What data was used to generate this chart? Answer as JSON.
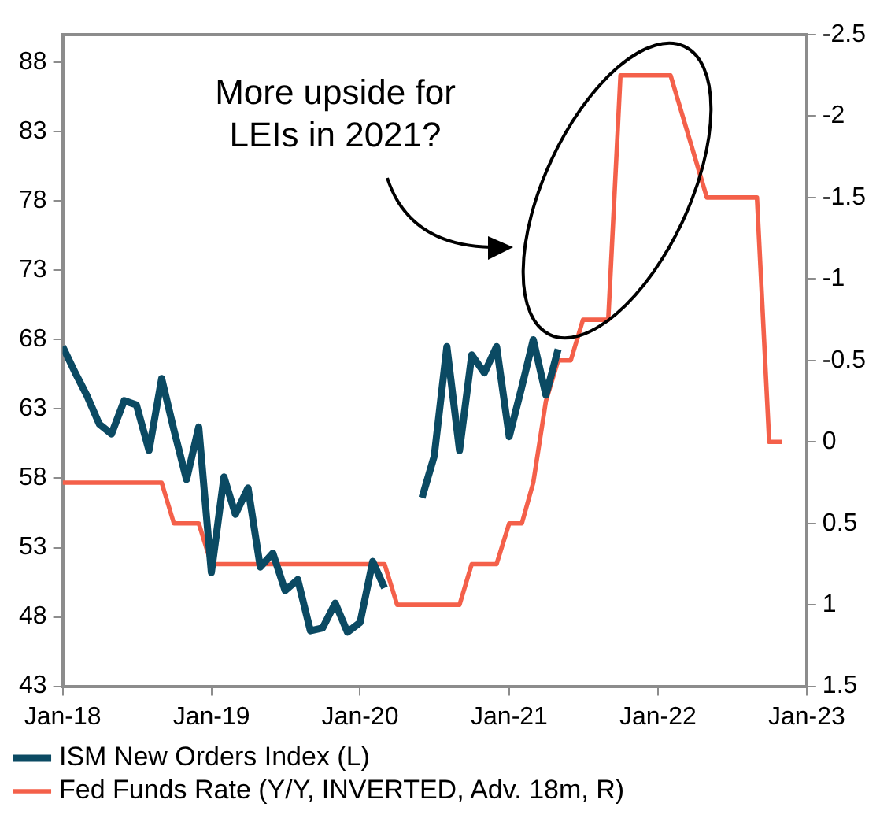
{
  "chart_data": {
    "type": "line",
    "annotations": [
      "More upside for\nLEIs in 2021?"
    ],
    "series": [
      {
        "name": "ISM New Orders Index (L)",
        "color": "#0b4a63",
        "axis": "y",
        "x": [
          "2018-01",
          "2018-02",
          "2018-03",
          "2018-04",
          "2018-05",
          "2018-06",
          "2018-07",
          "2018-08",
          "2018-09",
          "2018-10",
          "2018-11",
          "2018-12",
          "2019-01",
          "2019-02",
          "2019-03",
          "2019-04",
          "2019-05",
          "2019-06",
          "2019-07",
          "2019-08",
          "2019-09",
          "2019-10",
          "2019-11",
          "2019-12",
          "2020-01",
          "2020-02",
          "2020-03",
          "2020-04",
          "2020-05",
          "2020-06",
          "2020-07",
          "2020-08",
          "2020-09",
          "2020-10",
          "2020-11",
          "2020-12",
          "2021-01",
          "2021-02",
          "2021-03",
          "2021-04",
          "2021-05"
        ],
        "values": [
          67.5,
          65.6,
          64.0,
          61.9,
          61.2,
          63.6,
          63.3,
          60.0,
          65.2,
          61.5,
          57.9,
          61.7,
          51.2,
          58.1,
          55.4,
          57.3,
          51.6,
          52.6,
          49.9,
          50.7,
          47.0,
          47.2,
          49.0,
          46.9,
          47.6,
          52.0,
          50.1,
          null,
          null,
          56.6,
          59.6,
          67.5,
          60.0,
          66.9,
          65.6,
          67.5,
          61.0,
          64.6,
          68.0,
          64.0,
          67.3
        ]
      },
      {
        "name": "Fed Funds Rate (Y/Y, INVERTED, Adv. 18m, R)",
        "color": "#f4604a",
        "axis": "y2",
        "x": [
          "2018-01",
          "2018-09",
          "2018-10",
          "2018-12",
          "2019-01",
          "2020-03",
          "2020-04",
          "2020-09",
          "2020-10",
          "2020-12",
          "2021-01",
          "2021-02",
          "2021-03",
          "2021-04",
          "2021-05",
          "2021-06",
          "2021-07",
          "2021-09",
          "2021-10",
          "2022-02",
          "2022-05",
          "2022-09",
          "2022-10",
          "2022-11"
        ],
        "values": [
          0.25,
          0.25,
          0.5,
          0.5,
          0.75,
          0.75,
          1.0,
          1.0,
          0.75,
          0.75,
          0.5,
          0.5,
          0.25,
          -0.25,
          -0.5,
          -0.5,
          -0.75,
          -0.75,
          -2.25,
          -2.25,
          -1.5,
          -1.5,
          0,
          0
        ]
      }
    ],
    "xlim": [
      "2018-01",
      "2023-01"
    ],
    "xticks": [
      {
        "value": "2018-01",
        "label": "Jan-18"
      },
      {
        "value": "2019-01",
        "label": "Jan-19"
      },
      {
        "value": "2020-01",
        "label": "Jan-20"
      },
      {
        "value": "2021-01",
        "label": "Jan-21"
      },
      {
        "value": "2022-01",
        "label": "Jan-22"
      },
      {
        "value": "2023-01",
        "label": "Jan-23"
      }
    ],
    "ylim": [
      43,
      90
    ],
    "yticks": [
      43,
      48,
      53,
      58,
      63,
      68,
      73,
      78,
      83,
      88
    ],
    "y2lim": [
      1.5,
      -2.5
    ],
    "y2ticks": [
      1.5,
      1,
      0.5,
      0,
      -0.5,
      -1,
      -1.5,
      -2,
      -2.5
    ],
    "grid": false,
    "legend": "bottom",
    "marker": "none",
    "line_style": "solid"
  }
}
